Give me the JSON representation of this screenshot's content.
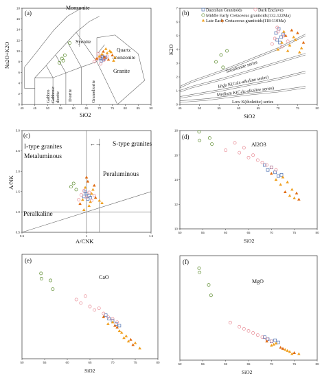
{
  "colors": {
    "dazeshan": "#4a6fb0",
    "enclave": "#e98d97",
    "middle": "#5a8a2a",
    "late": "#f0a020",
    "late_dark": "#e06a10"
  },
  "chart_data": [
    {
      "type": "scatter",
      "panel": "(a)",
      "xlabel": "SiO2",
      "ylabel": "Na2O+K2O",
      "xlim": [
        40,
        90
      ],
      "ylim": [
        0,
        18
      ],
      "xticks": [
        "40",
        "45",
        "50",
        "55",
        "60",
        "65",
        "70",
        "75",
        "80",
        "85",
        "90"
      ],
      "yticks": [
        "0",
        "2",
        "4",
        "6",
        "8",
        "10",
        "12",
        "14",
        "16",
        "18"
      ],
      "fields": [
        "Monzonite",
        "Syenite",
        "Quartz",
        "-monzonite",
        "Granite",
        "Gabbro",
        "Gabbroic",
        "diorite",
        "Diorite",
        "Granodiorite"
      ],
      "series": [
        {
          "name": "Dazeshan Granitoids",
          "x": [
            70.5,
            71.0,
            71.5,
            72.0,
            71.2,
            70.8,
            72.4
          ],
          "y": [
            8.6,
            8.9,
            8.4,
            8.7,
            9.0,
            8.2,
            8.8
          ]
        },
        {
          "name": "Dark Enclaves",
          "x": [
            68,
            69,
            70,
            71,
            72,
            73,
            70.5,
            71.8,
            69.5
          ],
          "y": [
            8.0,
            8.4,
            8.8,
            9.2,
            8.6,
            9.0,
            7.6,
            8.3,
            9.5
          ]
        },
        {
          "name": "Middle Early Cretaceous granitoids(132-122Ma)",
          "x": [
            54.5,
            55.5,
            56,
            56.6,
            58.5
          ],
          "y": [
            7.8,
            8.6,
            8.2,
            9.2,
            11.5
          ]
        },
        {
          "name": "Late Early Cretaceous granitoids(118-110Ma)",
          "x": [
            69,
            70,
            71,
            72,
            73,
            74,
            75,
            76,
            72.5,
            73.5,
            74.5,
            75.5,
            71.5
          ],
          "y": [
            8.6,
            9.0,
            9.4,
            8.8,
            9.6,
            10.0,
            9.2,
            8.8,
            10.4,
            8.4,
            9.8,
            8.2,
            9.9
          ]
        }
      ]
    },
    {
      "type": "scatter",
      "panel": "(b)",
      "xlabel": "SiO2",
      "ylabel": "K2O",
      "xlim": [
        45,
        80
      ],
      "ylim": [
        0,
        7
      ],
      "xticks": [
        "45",
        "50",
        "55",
        "60",
        "65",
        "70",
        "75",
        "80"
      ],
      "yticks": [
        "0",
        "1",
        "2",
        "3",
        "4",
        "5",
        "6",
        "7"
      ],
      "legend": [
        "Dazeshan Granitoids",
        "Dark Enclaves",
        "Middle Early Cretaceous granitoids(132-122Ma)",
        "Late Early Cretaceous granitoids(118-110Ma)"
      ],
      "fields": [
        "Shoshonite series",
        "High K(Calc-alkaline series)",
        "Medium K(Calc-alkaline series)",
        "Low K(tholetite) series"
      ],
      "series": [
        {
          "name": "Dazeshan Granitoids",
          "x": [
            69.5,
            70.2,
            70.8,
            71.3,
            69.8,
            70.5
          ],
          "y": [
            5.2,
            5.5,
            4.9,
            5.1,
            4.7,
            4.5
          ]
        },
        {
          "name": "Dark Enclaves",
          "x": [
            68.5,
            69.2,
            70.0,
            71.5,
            72.5,
            69.8,
            71.0
          ],
          "y": [
            4.4,
            4.8,
            5.3,
            5.0,
            4.6,
            5.6,
            4.2
          ]
        },
        {
          "name": "Middle Early Cretaceous granitoids(132-122Ma)",
          "x": [
            54.2,
            55.5,
            56.0,
            57.0
          ],
          "y": [
            3.1,
            3.6,
            2.7,
            3.9
          ]
        },
        {
          "name": "Late Early Cretaceous granitoids(118-110Ma)",
          "x": [
            55.8,
            70,
            71,
            72,
            73,
            74,
            75,
            76,
            72.5,
            73.5,
            74.5,
            75.5,
            76.5,
            71.5
          ],
          "y": [
            6.1,
            4.0,
            4.5,
            5.0,
            4.3,
            4.9,
            5.2,
            4.1,
            3.9,
            5.4,
            4.7,
            3.8,
            4.5,
            5.3
          ]
        }
      ]
    },
    {
      "type": "scatter",
      "panel": "(c)",
      "xlabel": "A/CNK",
      "ylabel": "A/NK",
      "xlim": [
        0.5,
        1.5
      ],
      "ylim": [
        0.5,
        3.0
      ],
      "xticks": [
        "0.5",
        "1",
        "1.5"
      ],
      "yticks": [
        "0.5",
        "1.0",
        "1.5",
        "2.0",
        "2.5",
        "3.0"
      ],
      "fields": [
        "I-type granites",
        "S-type granites",
        "Metaluminous",
        "Peraluminous",
        "Peralkaline"
      ],
      "series": [
        {
          "name": "Dazeshan Granitoids",
          "x": [
            0.98,
            1.0,
            1.01,
            1.02,
            0.99,
            1.03
          ],
          "y": [
            1.38,
            1.45,
            1.32,
            1.4,
            1.5,
            1.35
          ]
        },
        {
          "name": "Dark Enclaves",
          "x": [
            0.94,
            0.96,
            0.98,
            1.0,
            1.02,
            1.04,
            1.06
          ],
          "y": [
            1.3,
            1.42,
            1.52,
            1.36,
            1.48,
            1.28,
            1.4
          ]
        },
        {
          "name": "Middle Early Cretaceous granitoids(132-122Ma)",
          "x": [
            0.88,
            0.9,
            0.92
          ],
          "y": [
            1.62,
            1.7,
            1.55
          ]
        },
        {
          "name": "Late Early Cretaceous granitoids(118-110Ma)",
          "x": [
            0.95,
            0.97,
            0.99,
            1.01,
            1.03,
            1.05,
            1.07,
            1.1,
            1.12,
            1.0,
            1.02,
            1.04,
            1.06,
            0.98
          ],
          "y": [
            1.2,
            1.3,
            1.6,
            1.75,
            1.25,
            1.55,
            1.35,
            1.28,
            1.22,
            1.85,
            1.15,
            1.45,
            1.65,
            1.05
          ]
        }
      ]
    },
    {
      "type": "scatter",
      "panel": "(d)",
      "title": "Al2O3",
      "xlabel": "SiO2",
      "xlim": [
        50,
        80
      ],
      "ylim": [
        10,
        18
      ],
      "xticks": [
        "50",
        "55",
        "60",
        "65",
        "70",
        "75",
        "80"
      ],
      "yticks": [
        "10",
        "12",
        "14",
        "16",
        "18"
      ],
      "series": [
        {
          "name": "Dazeshan Granitoids",
          "x": [
            68.5,
            69.2,
            70.0,
            70.8,
            71.5,
            72.2
          ],
          "y": [
            15.2,
            14.8,
            15.0,
            14.6,
            14.3,
            14.4
          ]
        },
        {
          "name": "Dark Enclaves",
          "x": [
            60,
            62,
            63,
            64,
            65,
            66,
            67,
            68,
            69,
            70,
            71
          ],
          "y": [
            16.4,
            17.0,
            16.2,
            16.6,
            15.8,
            16.0,
            15.6,
            15.4,
            15.2,
            15.0,
            14.8
          ]
        },
        {
          "name": "Middle Early Cretaceous granitoids(132-122Ma)",
          "x": [
            54.2,
            54.3,
            56.5,
            57.0
          ],
          "y": [
            17.9,
            17.2,
            17.4,
            16.9
          ]
        },
        {
          "name": "Late Early Cretaceous granitoids(118-110Ma)",
          "x": [
            70,
            71,
            72,
            73,
            74,
            75,
            76,
            73.5,
            74.5,
            75.5,
            72.5
          ],
          "y": [
            14.5,
            14.0,
            13.6,
            13.0,
            12.7,
            12.5,
            12.4,
            13.8,
            13.2,
            12.9,
            14.2
          ]
        }
      ]
    },
    {
      "type": "scatter",
      "panel": "(e)",
      "title": "CaO",
      "xlabel": "SiO2",
      "xlim": [
        50,
        80
      ],
      "ylim": [
        0,
        6
      ],
      "xticks": [
        "50",
        "55",
        "60",
        "65",
        "70",
        "75",
        "80"
      ],
      "yticks": [],
      "series": [
        {
          "name": "Dazeshan Granitoids",
          "x": [
            68.5,
            69.2,
            70.0,
            70.8,
            71.5
          ],
          "y": [
            2.5,
            2.3,
            2.2,
            2.0,
            1.9
          ]
        },
        {
          "name": "Dark Enclaves",
          "x": [
            62,
            63,
            64,
            65,
            66,
            67,
            68,
            69,
            70,
            71
          ],
          "y": [
            3.4,
            3.2,
            3.6,
            3.0,
            2.8,
            2.9,
            2.6,
            2.4,
            2.3,
            2.1
          ]
        },
        {
          "name": "Middle Early Cretaceous granitoids(132-122Ma)",
          "x": [
            54.2,
            54.3,
            56.3,
            56.8
          ],
          "y": [
            4.9,
            4.6,
            4.5,
            4.0
          ]
        },
        {
          "name": "Late Early Cretaceous granitoids(118-110Ma)",
          "x": [
            68,
            69,
            70,
            71,
            72,
            73,
            74,
            75,
            76,
            70.5,
            72.5,
            73.5,
            74.5,
            71.5
          ],
          "y": [
            2.4,
            2.0,
            2.1,
            1.8,
            1.5,
            1.3,
            1.1,
            0.9,
            0.6,
            1.9,
            1.2,
            1.0,
            0.8,
            1.6
          ]
        }
      ]
    },
    {
      "type": "scatter",
      "panel": "(f)",
      "title": "MgO",
      "xlabel": "SiO2",
      "xlim": [
        50,
        80
      ],
      "ylim": [
        0,
        5
      ],
      "xticks": [
        "50",
        "55",
        "60",
        "65",
        "70",
        "75",
        "80"
      ],
      "yticks": [],
      "series": [
        {
          "name": "Dazeshan Granitoids",
          "x": [
            68.5,
            69.2,
            70.0,
            70.8,
            71.5
          ],
          "y": [
            1.1,
            1.0,
            0.9,
            0.95,
            0.85
          ]
        },
        {
          "name": "Dark Enclaves",
          "x": [
            61,
            63,
            64,
            65,
            66,
            67,
            68,
            69,
            70
          ],
          "y": [
            1.8,
            1.6,
            1.5,
            1.4,
            1.3,
            1.2,
            1.1,
            1.0,
            0.9
          ]
        },
        {
          "name": "Middle Early Cretaceous granitoids(132-122Ma)",
          "x": [
            54.2,
            54.3,
            56.3,
            56.8
          ],
          "y": [
            4.4,
            4.2,
            3.6,
            3.1
          ]
        },
        {
          "name": "Late Early Cretaceous granitoids(118-110Ma)",
          "x": [
            69,
            70,
            71,
            72,
            73,
            74,
            75,
            76,
            70.5,
            72.5,
            73.5,
            74.5
          ],
          "y": [
            0.9,
            0.7,
            0.8,
            0.6,
            0.5,
            0.4,
            0.35,
            0.3,
            0.75,
            0.55,
            0.45,
            0.3
          ]
        }
      ]
    }
  ]
}
